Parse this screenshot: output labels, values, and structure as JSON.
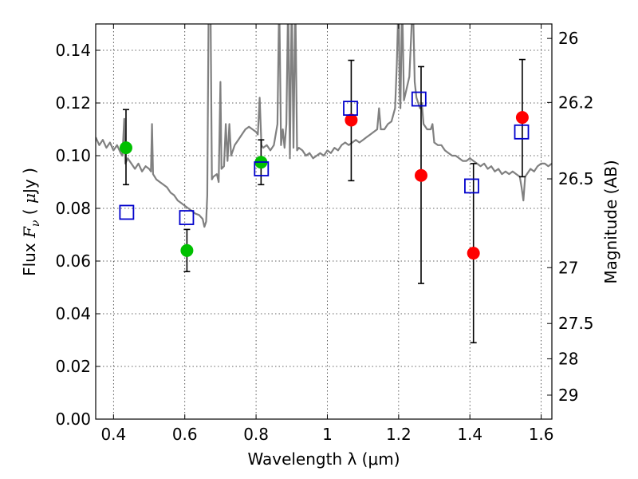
{
  "chart_data": {
    "type": "scatter",
    "title": "",
    "xlabel": "Wavelength  λ (μm)",
    "ylabel": "Flux  F_ν  ( μJy )",
    "ylabel_parts": [
      "Flux  ",
      "F",
      "ν",
      "  ( ",
      "μ",
      "Jy )"
    ],
    "y2label": "Magnitude (AB)",
    "xlim": [
      0.35,
      1.63
    ],
    "ylim": [
      0.0,
      0.15
    ],
    "grid": true,
    "xticks": [
      0.4,
      0.6,
      0.8,
      1.0,
      1.2,
      1.4,
      1.6
    ],
    "xtick_labels": [
      "0.4",
      "0.6",
      "0.8",
      "1",
      "1.2",
      "1.4",
      "1.6"
    ],
    "yticks": [
      0.0,
      0.02,
      0.04,
      0.06,
      0.08,
      0.1,
      0.12,
      0.14
    ],
    "ytick_labels": [
      "0.00",
      "0.02",
      "0.04",
      "0.06",
      "0.08",
      "0.10",
      "0.12",
      "0.14"
    ],
    "y2ticks": [
      {
        "label": "26",
        "flux": 0.1445
      },
      {
        "label": "26.2",
        "flux": 0.1202
      },
      {
        "label": "26.5",
        "flux": 0.0912
      },
      {
        "label": "27",
        "flux": 0.0575
      },
      {
        "label": "27.5",
        "flux": 0.0363
      },
      {
        "label": "28",
        "flux": 0.0229
      },
      {
        "label": "29",
        "flux": 0.0091
      }
    ],
    "colors": {
      "model": "#808080",
      "green": "#00c000",
      "red": "#ff0000",
      "square": "#0000cc",
      "errorbar": "#000000"
    },
    "series": [
      {
        "marker": "circle",
        "color": "green",
        "points": [
          {
            "x": 0.435,
            "y": 0.103,
            "yerr_low": 0.089,
            "yerr_high": 0.1175
          },
          {
            "x": 0.606,
            "y": 0.064,
            "yerr_low": 0.056,
            "yerr_high": 0.072
          },
          {
            "x": 0.814,
            "y": 0.0975,
            "yerr_low": 0.089,
            "yerr_high": 0.106
          }
        ]
      },
      {
        "marker": "circle",
        "color": "red",
        "points": [
          {
            "x": 1.067,
            "y": 0.1135,
            "yerr_low": 0.0905,
            "yerr_high": 0.1362
          },
          {
            "x": 1.263,
            "y": 0.0925,
            "yerr_low": 0.0515,
            "yerr_high": 0.1338
          },
          {
            "x": 1.41,
            "y": 0.063,
            "yerr_low": 0.029,
            "yerr_high": 0.097
          },
          {
            "x": 1.547,
            "y": 0.1145,
            "yerr_low": 0.092,
            "yerr_high": 0.1365
          }
        ]
      },
      {
        "marker": "square",
        "color": "square",
        "points": [
          {
            "x": 0.437,
            "y": 0.0785
          },
          {
            "x": 0.605,
            "y": 0.0765
          },
          {
            "x": 0.815,
            "y": 0.095
          },
          {
            "x": 1.065,
            "y": 0.118
          },
          {
            "x": 1.257,
            "y": 0.1215
          },
          {
            "x": 1.405,
            "y": 0.0885
          },
          {
            "x": 1.545,
            "y": 0.109
          }
        ]
      }
    ],
    "model_spectrum": [
      [
        0.35,
        0.107
      ],
      [
        0.36,
        0.104
      ],
      [
        0.37,
        0.106
      ],
      [
        0.38,
        0.103
      ],
      [
        0.39,
        0.105
      ],
      [
        0.4,
        0.102
      ],
      [
        0.41,
        0.104
      ],
      [
        0.42,
        0.101
      ],
      [
        0.425,
        0.1
      ],
      [
        0.43,
        0.114
      ],
      [
        0.433,
        0.097
      ],
      [
        0.44,
        0.099
      ],
      [
        0.45,
        0.097
      ],
      [
        0.46,
        0.095
      ],
      [
        0.47,
        0.097
      ],
      [
        0.48,
        0.094
      ],
      [
        0.49,
        0.096
      ],
      [
        0.5,
        0.095
      ],
      [
        0.505,
        0.094
      ],
      [
        0.508,
        0.112
      ],
      [
        0.511,
        0.093
      ],
      [
        0.52,
        0.091
      ],
      [
        0.53,
        0.09
      ],
      [
        0.54,
        0.089
      ],
      [
        0.55,
        0.088
      ],
      [
        0.56,
        0.086
      ],
      [
        0.57,
        0.085
      ],
      [
        0.58,
        0.083
      ],
      [
        0.59,
        0.082
      ],
      [
        0.6,
        0.081
      ],
      [
        0.61,
        0.08
      ],
      [
        0.62,
        0.079
      ],
      [
        0.63,
        0.078
      ],
      [
        0.64,
        0.0775
      ],
      [
        0.65,
        0.076
      ],
      [
        0.655,
        0.073
      ],
      [
        0.66,
        0.075
      ],
      [
        0.663,
        0.085
      ],
      [
        0.667,
        0.16
      ],
      [
        0.672,
        0.16
      ],
      [
        0.676,
        0.091
      ],
      [
        0.68,
        0.092
      ],
      [
        0.69,
        0.093
      ],
      [
        0.695,
        0.09
      ],
      [
        0.7,
        0.128
      ],
      [
        0.703,
        0.095
      ],
      [
        0.71,
        0.096
      ],
      [
        0.715,
        0.112
      ],
      [
        0.72,
        0.098
      ],
      [
        0.725,
        0.112
      ],
      [
        0.73,
        0.1
      ],
      [
        0.74,
        0.104
      ],
      [
        0.75,
        0.106
      ],
      [
        0.76,
        0.108
      ],
      [
        0.77,
        0.11
      ],
      [
        0.78,
        0.111
      ],
      [
        0.79,
        0.11
      ],
      [
        0.8,
        0.109
      ],
      [
        0.805,
        0.108
      ],
      [
        0.81,
        0.122
      ],
      [
        0.815,
        0.104
      ],
      [
        0.82,
        0.103
      ],
      [
        0.83,
        0.104
      ],
      [
        0.84,
        0.102
      ],
      [
        0.85,
        0.104
      ],
      [
        0.86,
        0.112
      ],
      [
        0.865,
        0.16
      ],
      [
        0.87,
        0.104
      ],
      [
        0.875,
        0.11
      ],
      [
        0.88,
        0.103
      ],
      [
        0.885,
        0.112
      ],
      [
        0.89,
        0.16
      ],
      [
        0.895,
        0.099
      ],
      [
        0.9,
        0.16
      ],
      [
        0.905,
        0.103
      ],
      [
        0.91,
        0.16
      ],
      [
        0.915,
        0.102
      ],
      [
        0.92,
        0.103
      ],
      [
        0.93,
        0.102
      ],
      [
        0.94,
        0.1
      ],
      [
        0.95,
        0.101
      ],
      [
        0.96,
        0.099
      ],
      [
        0.97,
        0.1
      ],
      [
        0.98,
        0.101
      ],
      [
        0.99,
        0.1
      ],
      [
        1.0,
        0.102
      ],
      [
        1.01,
        0.101
      ],
      [
        1.02,
        0.103
      ],
      [
        1.03,
        0.102
      ],
      [
        1.04,
        0.104
      ],
      [
        1.05,
        0.105
      ],
      [
        1.06,
        0.104
      ],
      [
        1.07,
        0.105
      ],
      [
        1.08,
        0.106
      ],
      [
        1.09,
        0.105
      ],
      [
        1.1,
        0.106
      ],
      [
        1.11,
        0.107
      ],
      [
        1.12,
        0.108
      ],
      [
        1.13,
        0.109
      ],
      [
        1.14,
        0.11
      ],
      [
        1.145,
        0.118
      ],
      [
        1.15,
        0.11
      ],
      [
        1.16,
        0.11
      ],
      [
        1.17,
        0.112
      ],
      [
        1.18,
        0.113
      ],
      [
        1.19,
        0.118
      ],
      [
        1.195,
        0.135
      ],
      [
        1.2,
        0.16
      ],
      [
        1.203,
        0.124
      ],
      [
        1.205,
        0.118
      ],
      [
        1.21,
        0.16
      ],
      [
        1.215,
        0.121
      ],
      [
        1.22,
        0.124
      ],
      [
        1.23,
        0.13
      ],
      [
        1.24,
        0.16
      ],
      [
        1.245,
        0.128
      ],
      [
        1.25,
        0.122
      ],
      [
        1.26,
        0.118
      ],
      [
        1.265,
        0.12
      ],
      [
        1.27,
        0.112
      ],
      [
        1.28,
        0.11
      ],
      [
        1.29,
        0.11
      ],
      [
        1.295,
        0.112
      ],
      [
        1.3,
        0.105
      ],
      [
        1.31,
        0.104
      ],
      [
        1.32,
        0.104
      ],
      [
        1.33,
        0.102
      ],
      [
        1.34,
        0.101
      ],
      [
        1.35,
        0.1
      ],
      [
        1.36,
        0.1
      ],
      [
        1.37,
        0.099
      ],
      [
        1.38,
        0.098
      ],
      [
        1.39,
        0.098
      ],
      [
        1.4,
        0.099
      ],
      [
        1.41,
        0.098
      ],
      [
        1.42,
        0.097
      ],
      [
        1.43,
        0.096
      ],
      [
        1.44,
        0.097
      ],
      [
        1.45,
        0.095
      ],
      [
        1.46,
        0.096
      ],
      [
        1.47,
        0.094
      ],
      [
        1.48,
        0.095
      ],
      [
        1.49,
        0.093
      ],
      [
        1.5,
        0.094
      ],
      [
        1.51,
        0.093
      ],
      [
        1.52,
        0.094
      ],
      [
        1.53,
        0.093
      ],
      [
        1.54,
        0.092
      ],
      [
        1.545,
        0.088
      ],
      [
        1.55,
        0.083
      ],
      [
        1.555,
        0.092
      ],
      [
        1.56,
        0.093
      ],
      [
        1.57,
        0.095
      ],
      [
        1.58,
        0.094
      ],
      [
        1.59,
        0.096
      ],
      [
        1.6,
        0.097
      ],
      [
        1.61,
        0.097
      ],
      [
        1.62,
        0.096
      ],
      [
        1.63,
        0.097
      ]
    ]
  }
}
